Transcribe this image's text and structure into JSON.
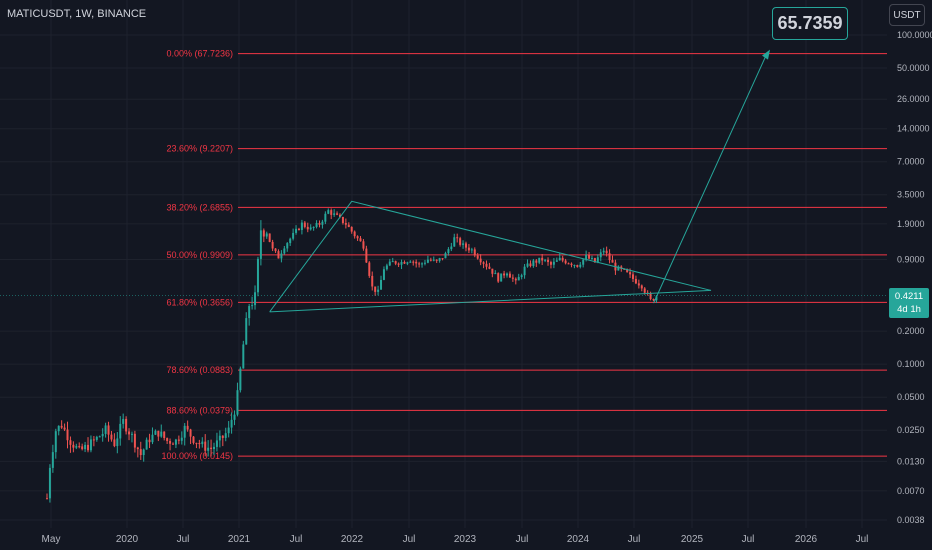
{
  "symbol_label": "MATICUSDT, 1W, BINANCE",
  "currency_button": "USDT",
  "target_label": "65.7359",
  "last_price": {
    "value": "0.4211",
    "countdown": "4d 1h"
  },
  "colors": {
    "up": "#26a69a",
    "down": "#ef5350",
    "fib": "#f23645",
    "trend": "#26a69a",
    "bg": "#131722"
  },
  "chart_data": {
    "type": "candlestick",
    "scale": "log",
    "ylim": [
      0.0038,
      100
    ],
    "y_ticks": [
      "100.0000",
      "50.0000",
      "26.0000",
      "14.0000",
      "7.0000",
      "3.5000",
      "1.9000",
      "0.9000",
      "0.4211",
      "0.2000",
      "0.1000",
      "0.0500",
      "0.0250",
      "0.0130",
      "0.0070",
      "0.0038"
    ],
    "x_ticks": [
      "May",
      "2020",
      "Jul",
      "2021",
      "Jul",
      "2022",
      "Jul",
      "2023",
      "Jul",
      "2024",
      "Jul",
      "2025",
      "Jul",
      "2026",
      "Jul"
    ],
    "fib_levels": [
      {
        "label": "0.00% (67.7236)",
        "value": 67.7236
      },
      {
        "label": "23.60% (9.2207)",
        "value": 9.2207
      },
      {
        "label": "38.20% (2.6855)",
        "value": 2.6855
      },
      {
        "label": "50.00% (0.9909)",
        "value": 0.9909
      },
      {
        "label": "61.80% (0.3656)",
        "value": 0.3656
      },
      {
        "label": "78.60% (0.0883)",
        "value": 0.0883
      },
      {
        "label": "88.60% (0.0379)",
        "value": 0.0379
      },
      {
        "label": "100.00% (0.0145)",
        "value": 0.0145
      }
    ],
    "anchors": [
      {
        "t": 0.0,
        "p": 0.006
      },
      {
        "t": 1,
        "p": 0.012
      },
      {
        "t": 3,
        "p": 0.025
      },
      {
        "t": 5,
        "p": 0.028
      },
      {
        "t": 8,
        "p": 0.02
      },
      {
        "t": 11,
        "p": 0.016
      },
      {
        "t": 14,
        "p": 0.018
      },
      {
        "t": 17,
        "p": 0.021
      },
      {
        "t": 20,
        "p": 0.025
      },
      {
        "t": 23,
        "p": 0.019
      },
      {
        "t": 26,
        "p": 0.03
      },
      {
        "t": 29,
        "p": 0.022
      },
      {
        "t": 32,
        "p": 0.015
      },
      {
        "t": 35,
        "p": 0.021
      },
      {
        "t": 38,
        "p": 0.024
      },
      {
        "t": 41,
        "p": 0.02
      },
      {
        "t": 44,
        "p": 0.02
      },
      {
        "t": 47,
        "p": 0.026
      },
      {
        "t": 50,
        "p": 0.021
      },
      {
        "t": 53,
        "p": 0.018
      },
      {
        "t": 56,
        "p": 0.017
      },
      {
        "t": 59,
        "p": 0.02
      },
      {
        "t": 62,
        "p": 0.025
      },
      {
        "t": 65,
        "p": 0.05
      },
      {
        "t": 67,
        "p": 0.15
      },
      {
        "t": 69,
        "p": 0.35
      },
      {
        "t": 71,
        "p": 0.4
      },
      {
        "t": 73,
        "p": 1.7
      },
      {
        "t": 75,
        "p": 1.6
      },
      {
        "t": 77,
        "p": 1.1
      },
      {
        "t": 79,
        "p": 0.95
      },
      {
        "t": 81,
        "p": 1.2
      },
      {
        "t": 84,
        "p": 1.5
      },
      {
        "t": 87,
        "p": 1.9
      },
      {
        "t": 90,
        "p": 1.7
      },
      {
        "t": 93,
        "p": 1.9
      },
      {
        "t": 96,
        "p": 2.5
      },
      {
        "t": 99,
        "p": 2.2
      },
      {
        "t": 102,
        "p": 1.9
      },
      {
        "t": 105,
        "p": 1.5
      },
      {
        "t": 108,
        "p": 1.2
      },
      {
        "t": 111,
        "p": 0.5
      },
      {
        "t": 113,
        "p": 0.45
      },
      {
        "t": 115,
        "p": 0.75
      },
      {
        "t": 118,
        "p": 0.85
      },
      {
        "t": 121,
        "p": 0.85
      },
      {
        "t": 124,
        "p": 0.9
      },
      {
        "t": 127,
        "p": 0.8
      },
      {
        "t": 130,
        "p": 0.9
      },
      {
        "t": 133,
        "p": 0.85
      },
      {
        "t": 136,
        "p": 1.0
      },
      {
        "t": 139,
        "p": 1.4
      },
      {
        "t": 142,
        "p": 1.2
      },
      {
        "t": 145,
        "p": 1.1
      },
      {
        "t": 148,
        "p": 0.9
      },
      {
        "t": 151,
        "p": 0.75
      },
      {
        "t": 154,
        "p": 0.6
      },
      {
        "t": 157,
        "p": 0.7
      },
      {
        "t": 160,
        "p": 0.55
      },
      {
        "t": 163,
        "p": 0.75
      },
      {
        "t": 166,
        "p": 0.85
      },
      {
        "t": 169,
        "p": 0.9
      },
      {
        "t": 172,
        "p": 0.8
      },
      {
        "t": 175,
        "p": 0.9
      },
      {
        "t": 178,
        "p": 0.85
      },
      {
        "t": 181,
        "p": 0.8
      },
      {
        "t": 184,
        "p": 0.95
      },
      {
        "t": 187,
        "p": 0.85
      },
      {
        "t": 190,
        "p": 1.1
      },
      {
        "t": 192,
        "p": 0.9
      },
      {
        "t": 194,
        "p": 0.75
      },
      {
        "t": 197,
        "p": 0.7
      },
      {
        "t": 200,
        "p": 0.6
      },
      {
        "t": 203,
        "p": 0.52
      },
      {
        "t": 206,
        "p": 0.38
      },
      {
        "t": 208,
        "p": 0.42
      }
    ]
  }
}
